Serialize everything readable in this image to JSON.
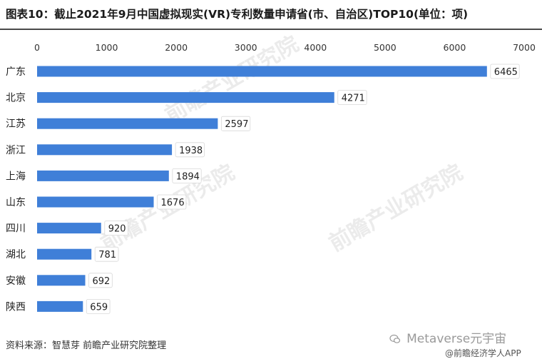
{
  "title": "图表10：截止2021年9月中国虚拟现实(VR)专利数量申请省(市、自治区)TOP10(单位：项)",
  "source": "资料来源：智慧芽 前瞻产业研究院整理",
  "watermark": {
    "center_text": "前瞻产业研究院",
    "account": "Metaverse元宇宙",
    "app": "@前瞻经济学人APP"
  },
  "colors": {
    "bar": "#3f7fd8",
    "rule": "#4a4a4a",
    "label_bg": "#ffffff"
  },
  "chart_data": {
    "type": "bar",
    "orientation": "horizontal",
    "categories": [
      "广东",
      "北京",
      "江苏",
      "浙江",
      "上海",
      "山东",
      "四川",
      "湖北",
      "安徽",
      "陕西"
    ],
    "values": [
      6465,
      4271,
      2597,
      1938,
      1894,
      1676,
      920,
      781,
      692,
      659
    ],
    "xlim": [
      0,
      7000
    ],
    "xticks": [
      0,
      1000,
      2000,
      3000,
      4000,
      5000,
      6000,
      7000
    ],
    "xaxis_position": "top",
    "grid": false,
    "data_labels": true
  }
}
